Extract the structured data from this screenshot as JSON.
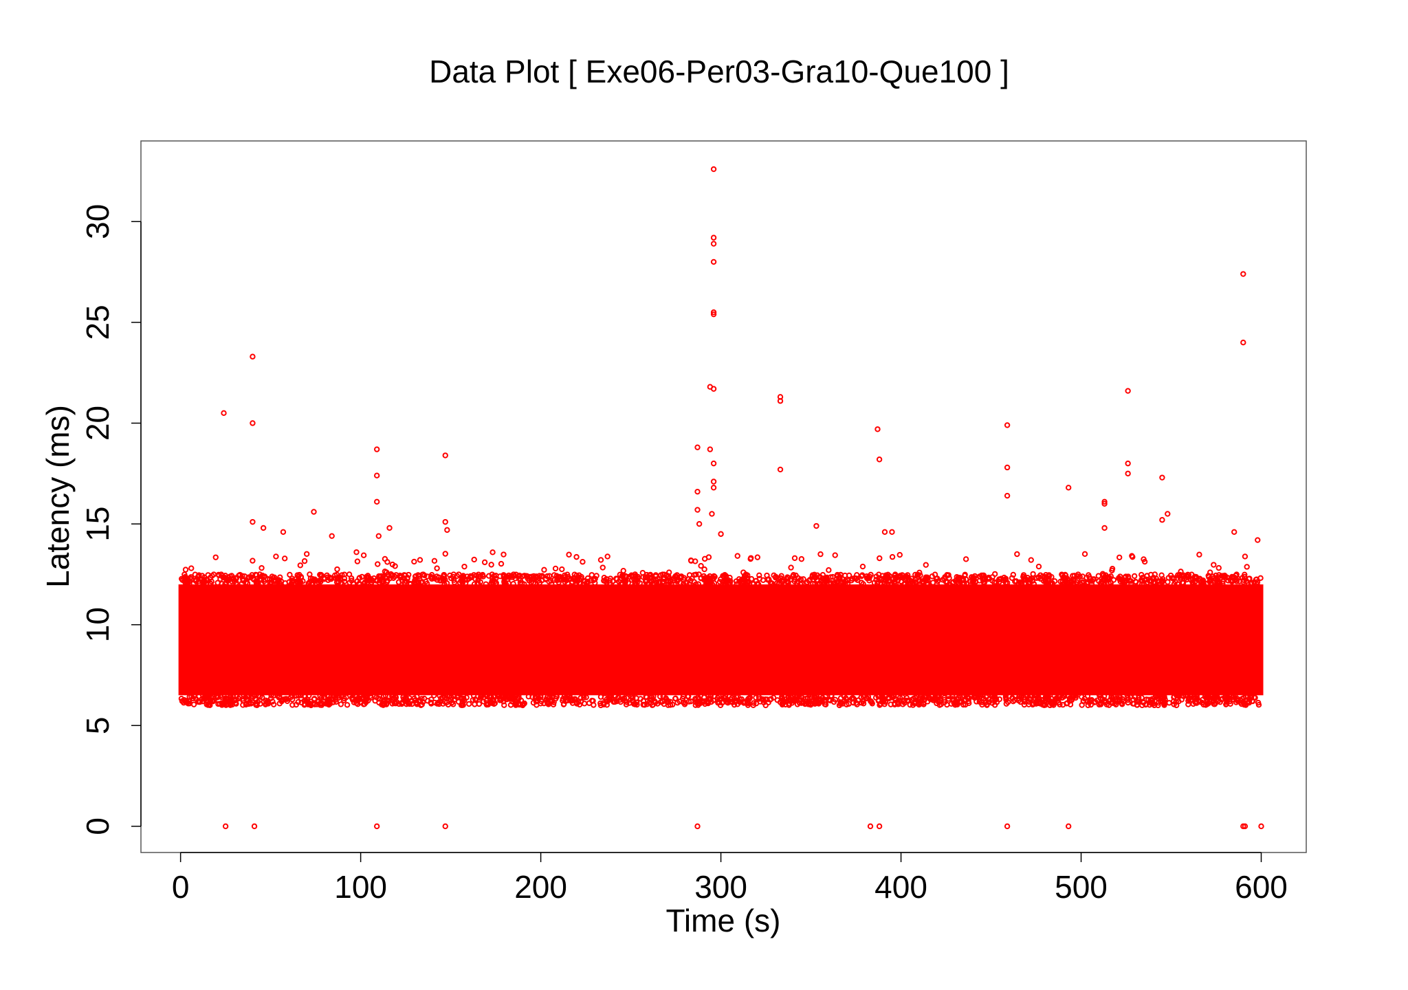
{
  "chart_data": {
    "type": "scatter",
    "title": "Data Plot [ Exe06-Per03-Gra10-Que100 ]",
    "xlabel": "Time (s)",
    "ylabel": "Latency (ms)",
    "xlim": [
      -22,
      625
    ],
    "ylim": [
      -1.3,
      34.0
    ],
    "x_ticks": [
      0,
      100,
      200,
      300,
      400,
      500,
      600
    ],
    "y_ticks": [
      0,
      5,
      10,
      15,
      20,
      25,
      30
    ],
    "grid": false,
    "legend": "none",
    "marker_color": "#ff0000",
    "series": [
      {
        "dense_band": {
          "x_range": [
            0,
            600
          ],
          "y_core": [
            6.5,
            12.0
          ],
          "y_spread": [
            6.0,
            12.5
          ]
        },
        "outliers": [
          {
            "x": 24,
            "y": 20.5
          },
          {
            "x": 25,
            "y": 0
          },
          {
            "x": 40,
            "y": 23.3
          },
          {
            "x": 40,
            "y": 20.0
          },
          {
            "x": 40,
            "y": 15.1
          },
          {
            "x": 41,
            "y": 0
          },
          {
            "x": 46,
            "y": 14.8
          },
          {
            "x": 57,
            "y": 14.6
          },
          {
            "x": 74,
            "y": 15.6
          },
          {
            "x": 84,
            "y": 14.4
          },
          {
            "x": 109,
            "y": 18.7
          },
          {
            "x": 109,
            "y": 17.4
          },
          {
            "x": 109,
            "y": 16.1
          },
          {
            "x": 109,
            "y": 0
          },
          {
            "x": 110,
            "y": 14.4
          },
          {
            "x": 116,
            "y": 14.8
          },
          {
            "x": 147,
            "y": 18.4
          },
          {
            "x": 147,
            "y": 15.1
          },
          {
            "x": 148,
            "y": 14.7
          },
          {
            "x": 147,
            "y": 0
          },
          {
            "x": 287,
            "y": 18.8
          },
          {
            "x": 287,
            "y": 16.6
          },
          {
            "x": 287,
            "y": 15.7
          },
          {
            "x": 288,
            "y": 15.0
          },
          {
            "x": 287,
            "y": 0
          },
          {
            "x": 294,
            "y": 21.8
          },
          {
            "x": 294,
            "y": 18.7
          },
          {
            "x": 295,
            "y": 15.5
          },
          {
            "x": 296,
            "y": 32.6
          },
          {
            "x": 296,
            "y": 29.2
          },
          {
            "x": 296,
            "y": 28.9
          },
          {
            "x": 296,
            "y": 28.0
          },
          {
            "x": 296,
            "y": 25.5
          },
          {
            "x": 296,
            "y": 25.4
          },
          {
            "x": 296,
            "y": 21.7
          },
          {
            "x": 296,
            "y": 18.0
          },
          {
            "x": 296,
            "y": 17.1
          },
          {
            "x": 296,
            "y": 16.8
          },
          {
            "x": 300,
            "y": 14.5
          },
          {
            "x": 333,
            "y": 21.3
          },
          {
            "x": 333,
            "y": 21.1
          },
          {
            "x": 333,
            "y": 17.7
          },
          {
            "x": 353,
            "y": 14.9
          },
          {
            "x": 383,
            "y": 0
          },
          {
            "x": 387,
            "y": 19.7
          },
          {
            "x": 388,
            "y": 18.2
          },
          {
            "x": 388,
            "y": 0
          },
          {
            "x": 391,
            "y": 14.6
          },
          {
            "x": 395,
            "y": 14.6
          },
          {
            "x": 459,
            "y": 19.9
          },
          {
            "x": 459,
            "y": 17.8
          },
          {
            "x": 459,
            "y": 16.4
          },
          {
            "x": 459,
            "y": 0
          },
          {
            "x": 493,
            "y": 16.8
          },
          {
            "x": 493,
            "y": 0
          },
          {
            "x": 513,
            "y": 16.1
          },
          {
            "x": 513,
            "y": 16.0
          },
          {
            "x": 513,
            "y": 14.8
          },
          {
            "x": 526,
            "y": 21.6
          },
          {
            "x": 526,
            "y": 18.0
          },
          {
            "x": 526,
            "y": 17.5
          },
          {
            "x": 545,
            "y": 17.3
          },
          {
            "x": 545,
            "y": 15.2
          },
          {
            "x": 548,
            "y": 15.5
          },
          {
            "x": 585,
            "y": 14.6
          },
          {
            "x": 590,
            "y": 27.4
          },
          {
            "x": 590,
            "y": 24.0
          },
          {
            "x": 590,
            "y": 0
          },
          {
            "x": 591,
            "y": 0
          },
          {
            "x": 598,
            "y": 14.2
          },
          {
            "x": 600,
            "y": 0
          }
        ]
      }
    ]
  }
}
